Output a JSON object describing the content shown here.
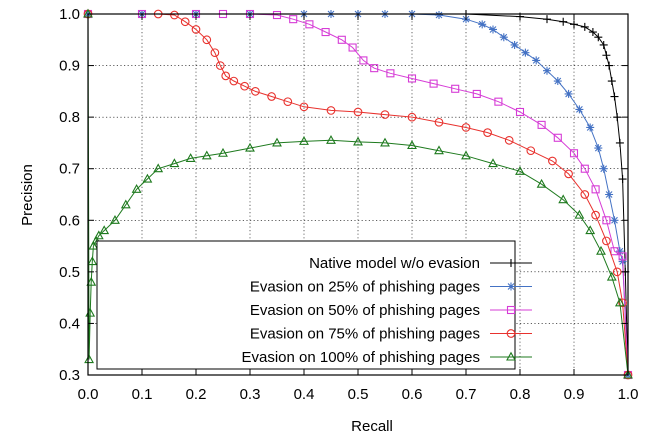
{
  "chart_data": {
    "type": "line",
    "title": "",
    "xlabel": "Recall",
    "ylabel": "Precision",
    "xlim": [
      0.0,
      1.0
    ],
    "ylim": [
      0.3,
      1.0
    ],
    "xticks": [
      "0.0",
      "0.1",
      "0.2",
      "0.3",
      "0.4",
      "0.5",
      "0.6",
      "0.7",
      "0.8",
      "0.9",
      "1.0"
    ],
    "yticks": [
      "0.3",
      "0.4",
      "0.5",
      "0.6",
      "0.7",
      "0.8",
      "0.9",
      "1.0"
    ],
    "grid": true,
    "legend_position": "bottom-right",
    "series": [
      {
        "name": "Native model w/o evasion",
        "color": "#000000",
        "marker": "plus",
        "points": [
          [
            0.0,
            1.0
          ],
          [
            0.1,
            1.0
          ],
          [
            0.2,
            1.0
          ],
          [
            0.3,
            1.0
          ],
          [
            0.4,
            1.0
          ],
          [
            0.5,
            1.0
          ],
          [
            0.6,
            1.0
          ],
          [
            0.7,
            1.0
          ],
          [
            0.8,
            0.995
          ],
          [
            0.85,
            0.99
          ],
          [
            0.88,
            0.985
          ],
          [
            0.9,
            0.98
          ],
          [
            0.92,
            0.975
          ],
          [
            0.935,
            0.965
          ],
          [
            0.945,
            0.955
          ],
          [
            0.955,
            0.94
          ],
          [
            0.96,
            0.92
          ],
          [
            0.965,
            0.9
          ],
          [
            0.97,
            0.87
          ],
          [
            0.975,
            0.84
          ],
          [
            0.98,
            0.8
          ],
          [
            0.985,
            0.75
          ],
          [
            0.99,
            0.68
          ],
          [
            0.995,
            0.5
          ],
          [
            1.0,
            0.3
          ]
        ]
      },
      {
        "name": "Evasion on 25% of phishing pages",
        "color": "#4472c4",
        "marker": "star",
        "points": [
          [
            0.0,
            1.0
          ],
          [
            0.1,
            1.0
          ],
          [
            0.2,
            1.0
          ],
          [
            0.3,
            1.0
          ],
          [
            0.4,
            1.0
          ],
          [
            0.45,
            1.0
          ],
          [
            0.5,
            1.0
          ],
          [
            0.55,
            1.0
          ],
          [
            0.6,
            1.0
          ],
          [
            0.65,
            0.998
          ],
          [
            0.7,
            0.99
          ],
          [
            0.73,
            0.98
          ],
          [
            0.75,
            0.97
          ],
          [
            0.77,
            0.955
          ],
          [
            0.79,
            0.94
          ],
          [
            0.81,
            0.925
          ],
          [
            0.83,
            0.91
          ],
          [
            0.85,
            0.89
          ],
          [
            0.87,
            0.87
          ],
          [
            0.89,
            0.845
          ],
          [
            0.91,
            0.815
          ],
          [
            0.93,
            0.78
          ],
          [
            0.945,
            0.74
          ],
          [
            0.955,
            0.7
          ],
          [
            0.965,
            0.65
          ],
          [
            0.975,
            0.6
          ],
          [
            0.985,
            0.54
          ],
          [
            0.99,
            0.52
          ],
          [
            1.0,
            0.3
          ]
        ]
      },
      {
        "name": "Evasion on 50% of phishing pages",
        "color": "#d63cd6",
        "marker": "square",
        "points": [
          [
            0.0,
            1.0
          ],
          [
            0.1,
            1.0
          ],
          [
            0.2,
            1.0
          ],
          [
            0.25,
            1.0
          ],
          [
            0.3,
            1.0
          ],
          [
            0.35,
            0.998
          ],
          [
            0.38,
            0.99
          ],
          [
            0.41,
            0.98
          ],
          [
            0.44,
            0.965
          ],
          [
            0.47,
            0.95
          ],
          [
            0.49,
            0.935
          ],
          [
            0.51,
            0.91
          ],
          [
            0.53,
            0.895
          ],
          [
            0.56,
            0.885
          ],
          [
            0.6,
            0.875
          ],
          [
            0.64,
            0.865
          ],
          [
            0.68,
            0.855
          ],
          [
            0.72,
            0.845
          ],
          [
            0.76,
            0.83
          ],
          [
            0.8,
            0.81
          ],
          [
            0.84,
            0.785
          ],
          [
            0.87,
            0.76
          ],
          [
            0.9,
            0.73
          ],
          [
            0.92,
            0.7
          ],
          [
            0.94,
            0.66
          ],
          [
            0.96,
            0.6
          ],
          [
            0.975,
            0.54
          ],
          [
            0.99,
            0.53
          ],
          [
            1.0,
            0.3
          ]
        ]
      },
      {
        "name": "Evasion on 75% of phishing pages",
        "color": "#e8322e",
        "marker": "circle",
        "points": [
          [
            0.0,
            1.0
          ],
          [
            0.13,
            1.0
          ],
          [
            0.16,
            0.998
          ],
          [
            0.18,
            0.985
          ],
          [
            0.2,
            0.97
          ],
          [
            0.22,
            0.95
          ],
          [
            0.235,
            0.925
          ],
          [
            0.245,
            0.9
          ],
          [
            0.255,
            0.88
          ],
          [
            0.27,
            0.87
          ],
          [
            0.29,
            0.86
          ],
          [
            0.31,
            0.85
          ],
          [
            0.34,
            0.84
          ],
          [
            0.37,
            0.83
          ],
          [
            0.4,
            0.82
          ],
          [
            0.45,
            0.813
          ],
          [
            0.5,
            0.81
          ],
          [
            0.55,
            0.805
          ],
          [
            0.6,
            0.8
          ],
          [
            0.65,
            0.79
          ],
          [
            0.7,
            0.78
          ],
          [
            0.74,
            0.77
          ],
          [
            0.78,
            0.755
          ],
          [
            0.82,
            0.735
          ],
          [
            0.86,
            0.715
          ],
          [
            0.89,
            0.69
          ],
          [
            0.92,
            0.65
          ],
          [
            0.94,
            0.61
          ],
          [
            0.96,
            0.56
          ],
          [
            0.98,
            0.5
          ],
          [
            0.99,
            0.44
          ],
          [
            1.0,
            0.3
          ]
        ]
      },
      {
        "name": "Evasion on 100% of phishing pages",
        "color": "#1e7a1e",
        "marker": "triangle",
        "points": [
          [
            0.0,
            1.0
          ],
          [
            0.002,
            0.33
          ],
          [
            0.004,
            0.42
          ],
          [
            0.006,
            0.48
          ],
          [
            0.008,
            0.52
          ],
          [
            0.01,
            0.55
          ],
          [
            0.015,
            0.56
          ],
          [
            0.02,
            0.57
          ],
          [
            0.03,
            0.58
          ],
          [
            0.05,
            0.6
          ],
          [
            0.07,
            0.63
          ],
          [
            0.09,
            0.66
          ],
          [
            0.11,
            0.68
          ],
          [
            0.13,
            0.7
          ],
          [
            0.16,
            0.71
          ],
          [
            0.19,
            0.72
          ],
          [
            0.22,
            0.725
          ],
          [
            0.25,
            0.73
          ],
          [
            0.3,
            0.74
          ],
          [
            0.35,
            0.75
          ],
          [
            0.4,
            0.753
          ],
          [
            0.45,
            0.755
          ],
          [
            0.5,
            0.752
          ],
          [
            0.55,
            0.75
          ],
          [
            0.6,
            0.745
          ],
          [
            0.65,
            0.735
          ],
          [
            0.7,
            0.725
          ],
          [
            0.75,
            0.71
          ],
          [
            0.8,
            0.695
          ],
          [
            0.84,
            0.67
          ],
          [
            0.88,
            0.64
          ],
          [
            0.91,
            0.61
          ],
          [
            0.93,
            0.58
          ],
          [
            0.95,
            0.54
          ],
          [
            0.97,
            0.49
          ],
          [
            0.985,
            0.44
          ],
          [
            1.0,
            0.3
          ]
        ]
      }
    ]
  }
}
